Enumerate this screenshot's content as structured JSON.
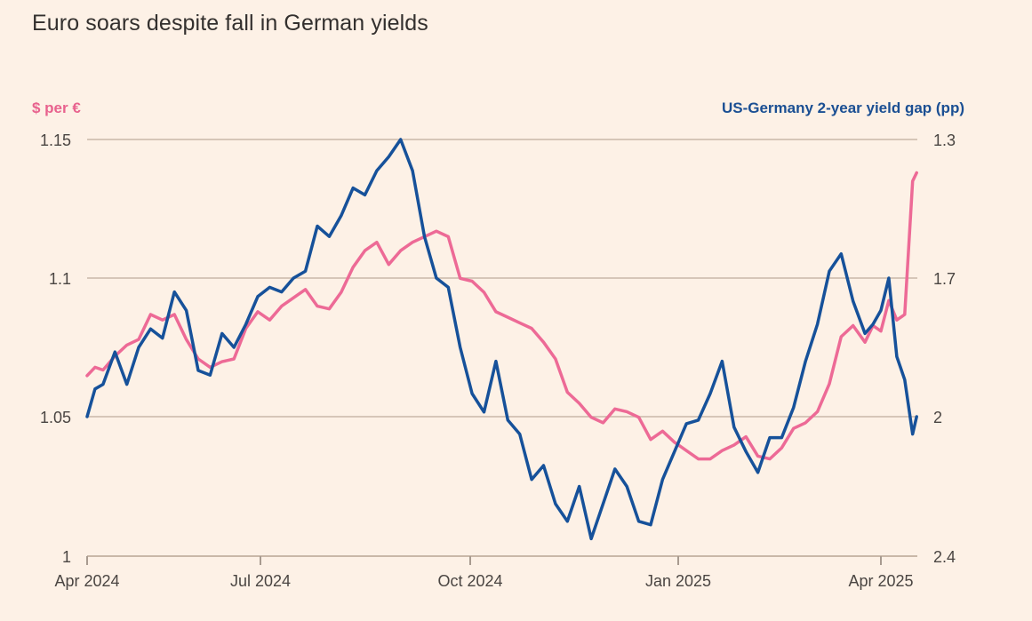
{
  "chart_data": {
    "type": "line",
    "title": "Euro soars despite fall in German yields",
    "ylabel_left": "$ per €",
    "ylabel_right": "US-Germany 2-year yield gap (pp)",
    "right_axis_inverted": true,
    "xlabel": "",
    "x_ticks": [
      "Apr 2024",
      "Jul 2024",
      "Oct 2024",
      "Jan 2025",
      "Apr 2025"
    ],
    "y_ticks_left": [
      "1.15",
      "1.1",
      "1.05",
      "1"
    ],
    "y_ticks_right": [
      "1.3",
      "1.7",
      "2",
      "2.4"
    ],
    "ylim_left": [
      1.0,
      1.15
    ],
    "ylim_right": [
      2.4,
      1.3
    ],
    "grid": true,
    "colors": {
      "eurusd": "#ed6a96",
      "yield_gap": "#16519a",
      "background": "#fdf1e6",
      "grid": "#c9b8a8"
    },
    "x_time_index_note": "t = fraction of time from Apr 2024 (0) to Apr 2025 (1); values beyond 1 extend into mid-April 2025",
    "series": [
      {
        "name": "$ per €",
        "axis": "left",
        "t": [
          0.0,
          0.01,
          0.02,
          0.035,
          0.05,
          0.065,
          0.08,
          0.095,
          0.11,
          0.125,
          0.14,
          0.155,
          0.17,
          0.185,
          0.2,
          0.215,
          0.23,
          0.245,
          0.26,
          0.275,
          0.29,
          0.305,
          0.32,
          0.335,
          0.35,
          0.365,
          0.38,
          0.395,
          0.41,
          0.425,
          0.44,
          0.455,
          0.47,
          0.485,
          0.5,
          0.515,
          0.53,
          0.545,
          0.56,
          0.575,
          0.59,
          0.605,
          0.62,
          0.635,
          0.65,
          0.665,
          0.68,
          0.695,
          0.71,
          0.725,
          0.74,
          0.755,
          0.77,
          0.785,
          0.8,
          0.815,
          0.83,
          0.845,
          0.86,
          0.875,
          0.89,
          0.905,
          0.92,
          0.935,
          0.95,
          0.965,
          0.98,
          0.99,
          1.0,
          1.01,
          1.02,
          1.03,
          1.04,
          1.045
        ],
        "values": [
          1.065,
          1.068,
          1.067,
          1.072,
          1.076,
          1.078,
          1.087,
          1.085,
          1.087,
          1.078,
          1.071,
          1.068,
          1.07,
          1.071,
          1.082,
          1.088,
          1.085,
          1.09,
          1.093,
          1.096,
          1.09,
          1.089,
          1.095,
          1.104,
          1.11,
          1.113,
          1.105,
          1.11,
          1.113,
          1.115,
          1.117,
          1.115,
          1.1,
          1.099,
          1.095,
          1.088,
          1.086,
          1.084,
          1.082,
          1.077,
          1.071,
          1.059,
          1.055,
          1.05,
          1.048,
          1.053,
          1.052,
          1.05,
          1.042,
          1.045,
          1.041,
          1.038,
          1.035,
          1.035,
          1.038,
          1.04,
          1.043,
          1.036,
          1.035,
          1.039,
          1.046,
          1.048,
          1.052,
          1.062,
          1.079,
          1.083,
          1.077,
          1.083,
          1.081,
          1.092,
          1.085,
          1.087,
          1.135,
          1.138
        ]
      },
      {
        "name": "US-Germany 2-year yield gap (pp)",
        "axis": "right",
        "t": [
          0.0,
          0.01,
          0.02,
          0.035,
          0.05,
          0.065,
          0.08,
          0.095,
          0.11,
          0.125,
          0.14,
          0.155,
          0.17,
          0.185,
          0.2,
          0.215,
          0.23,
          0.245,
          0.26,
          0.275,
          0.29,
          0.305,
          0.32,
          0.335,
          0.35,
          0.365,
          0.38,
          0.395,
          0.41,
          0.425,
          0.44,
          0.455,
          0.47,
          0.485,
          0.5,
          0.515,
          0.53,
          0.545,
          0.56,
          0.575,
          0.59,
          0.605,
          0.62,
          0.635,
          0.65,
          0.665,
          0.68,
          0.695,
          0.71,
          0.725,
          0.74,
          0.755,
          0.77,
          0.785,
          0.8,
          0.815,
          0.83,
          0.845,
          0.86,
          0.875,
          0.89,
          0.905,
          0.92,
          0.935,
          0.95,
          0.965,
          0.98,
          0.99,
          1.0,
          1.01,
          1.02,
          1.03,
          1.04,
          1.045
        ],
        "values": [
          2.0,
          1.94,
          1.93,
          1.86,
          1.93,
          1.85,
          1.81,
          1.83,
          1.73,
          1.77,
          1.9,
          1.91,
          1.82,
          1.85,
          1.8,
          1.74,
          1.72,
          1.73,
          1.7,
          1.68,
          1.55,
          1.58,
          1.52,
          1.44,
          1.46,
          1.39,
          1.35,
          1.3,
          1.39,
          1.58,
          1.7,
          1.72,
          1.85,
          1.95,
          1.99,
          1.88,
          2.01,
          2.05,
          2.18,
          2.14,
          2.25,
          2.3,
          2.2,
          2.35,
          2.25,
          2.15,
          2.2,
          2.3,
          2.31,
          2.18,
          2.1,
          2.02,
          2.01,
          1.95,
          1.88,
          2.03,
          2.1,
          2.16,
          2.06,
          2.06,
          1.98,
          1.88,
          1.8,
          1.68,
          1.63,
          1.75,
          1.82,
          1.8,
          1.77,
          1.7,
          1.87,
          1.92,
          2.05,
          2.0
        ]
      }
    ]
  }
}
